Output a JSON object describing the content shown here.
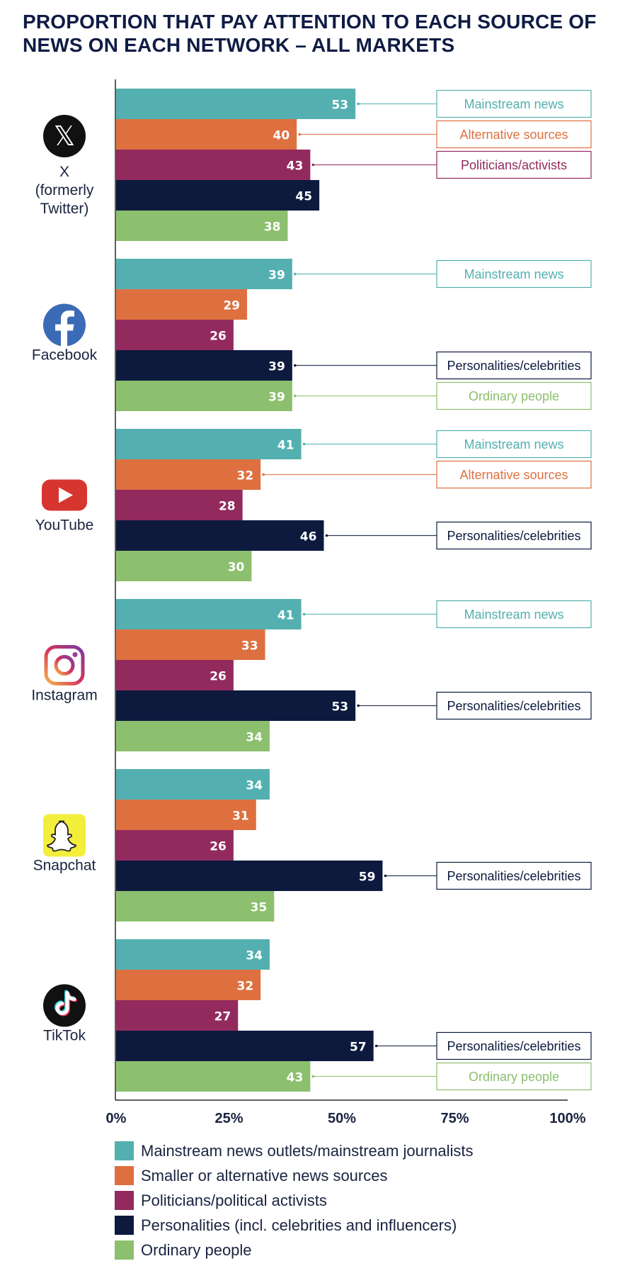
{
  "title_line1": "PROPORTION THAT PAY ATTENTION TO EACH SOURCE OF",
  "title_line2": "NEWS ON EACH NETWORK – ALL MARKETS",
  "colors": {
    "mainstream": "#54b0b0",
    "alternative": "#de7040",
    "politicians": "#922a5e",
    "personalities": "#0d1a3e",
    "ordinary": "#8cbf6e"
  },
  "chart_data": {
    "type": "bar",
    "orientation": "horizontal",
    "title": "PROPORTION THAT PAY ATTENTION TO EACH SOURCE OF NEWS ON EACH NETWORK – ALL MARKETS",
    "xlim": [
      0,
      100
    ],
    "x_ticks": [
      "0%",
      "25%",
      "50%",
      "75%",
      "100%"
    ],
    "series_keys": [
      "mainstream",
      "alternative",
      "politicians",
      "personalities",
      "ordinary"
    ],
    "groups": [
      {
        "name": "X\n(formerly\nTwitter)",
        "label_lines": [
          "X",
          "(formerly",
          "Twitter)"
        ],
        "icon": "x-icon",
        "values": [
          53,
          40,
          43,
          45,
          38
        ],
        "callouts": [
          {
            "series": 0,
            "text": "Mainstream news"
          },
          {
            "series": 1,
            "text": "Alternative sources"
          },
          {
            "series": 2,
            "text": "Politicians/activists"
          }
        ]
      },
      {
        "name": "Facebook",
        "label_lines": [
          "Facebook"
        ],
        "icon": "facebook-icon",
        "values": [
          39,
          29,
          26,
          39,
          39
        ],
        "callouts": [
          {
            "series": 0,
            "text": "Mainstream news"
          },
          {
            "series": 3,
            "text": "Personalities/celebrities"
          },
          {
            "series": 4,
            "text": "Ordinary people"
          }
        ]
      },
      {
        "name": "YouTube",
        "label_lines": [
          "YouTube"
        ],
        "icon": "youtube-icon",
        "values": [
          41,
          32,
          28,
          46,
          30
        ],
        "callouts": [
          {
            "series": 0,
            "text": "Mainstream news"
          },
          {
            "series": 1,
            "text": "Alternative sources"
          },
          {
            "series": 3,
            "text": "Personalities/celebrities"
          }
        ]
      },
      {
        "name": "Instagram",
        "label_lines": [
          "Instagram"
        ],
        "icon": "instagram-icon",
        "values": [
          41,
          33,
          26,
          53,
          34
        ],
        "callouts": [
          {
            "series": 0,
            "text": "Mainstream news"
          },
          {
            "series": 3,
            "text": "Personalities/celebrities"
          }
        ]
      },
      {
        "name": "Snapchat",
        "label_lines": [
          "Snapchat"
        ],
        "icon": "snapchat-icon",
        "values": [
          34,
          31,
          26,
          59,
          35
        ],
        "callouts": [
          {
            "series": 3,
            "text": "Personalities/celebrities"
          }
        ]
      },
      {
        "name": "TikTok",
        "label_lines": [
          "TikTok"
        ],
        "icon": "tiktok-icon",
        "values": [
          34,
          32,
          27,
          57,
          43
        ],
        "callouts": [
          {
            "series": 3,
            "text": "Personalities/celebrities"
          },
          {
            "series": 4,
            "text": "Ordinary people"
          }
        ]
      }
    ],
    "legend": [
      {
        "key": "mainstream",
        "label": "Mainstream news outlets/mainstream journalists"
      },
      {
        "key": "alternative",
        "label": "Smaller or alternative news sources"
      },
      {
        "key": "politicians",
        "label": "Politicians/political activists"
      },
      {
        "key": "personalities",
        "label": "Personalities (incl. celebrities and influencers)"
      },
      {
        "key": "ordinary",
        "label": "Ordinary people"
      }
    ]
  }
}
